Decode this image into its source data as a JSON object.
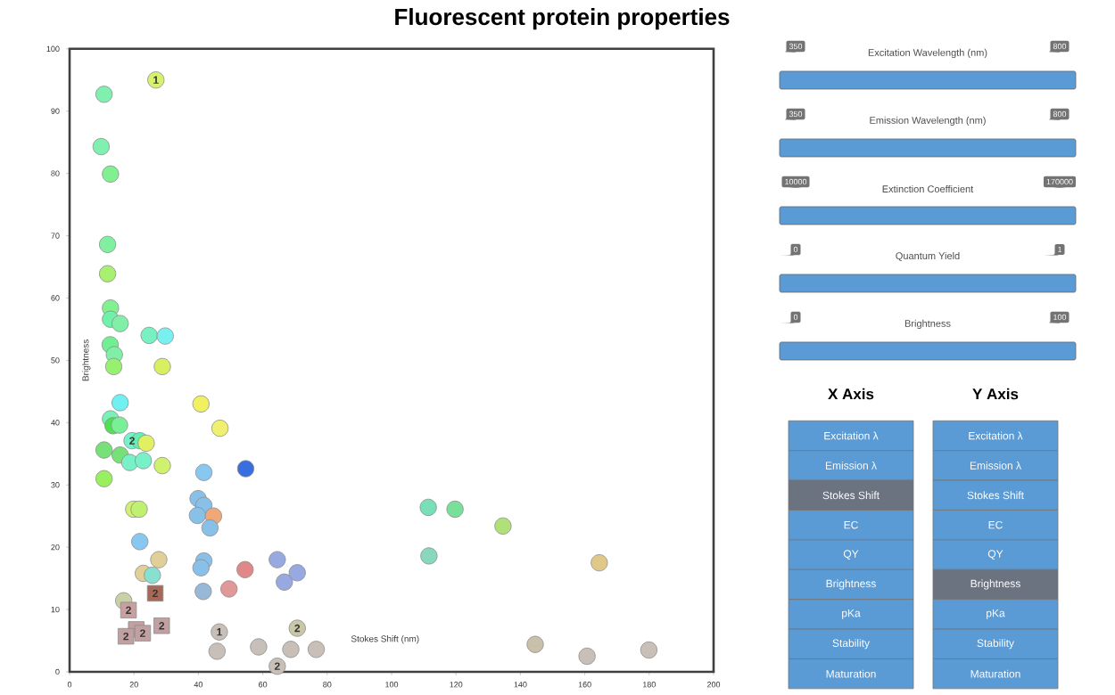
{
  "chart_data": [
    {
      "type": "scatter",
      "title": "Fluorescent protein properties",
      "xlabel": "Stokes Shift (nm)",
      "ylabel": "Brightness",
      "xlim": [
        0,
        200
      ],
      "ylim": [
        0,
        100
      ],
      "xticks": [
        0,
        20,
        40,
        60,
        80,
        100,
        120,
        140,
        160,
        180,
        200
      ],
      "yticks": [
        0,
        10,
        20,
        30,
        40,
        50,
        60,
        70,
        80,
        90,
        100
      ],
      "series": [
        {
          "marker": "circle",
          "x": [
            26.8,
            10.7,
            9.8,
            12.7,
            11.8,
            11.8,
            12.7,
            12.7,
            15.7,
            24.7,
            29.7,
            12.6,
            13.9,
            13.7,
            28.8,
            15.7,
            40.8,
            46.7,
            12.7,
            13.5,
            15.5,
            19.4,
            21.8,
            23.8,
            10.7,
            15.7,
            18.7,
            22.9,
            28.8,
            10.7,
            41.7,
            54.7,
            39.9,
            41.7,
            39.7,
            44.7,
            43.6,
            19.9,
            21.6,
            21.8,
            27.7,
            41.7,
            40.8,
            22.9,
            25.7,
            41.5,
            49.5,
            54.5,
            64.5,
            66.7,
            70.7,
            111.4,
            119.7,
            134.6,
            111.6,
            164.5,
            16.8,
            46.5,
            45.8,
            58.7,
            68.7,
            76.6,
            70.7,
            64.5,
            144.6,
            160.7,
            179.9
          ],
          "values": [
            95.0,
            92.7,
            84.3,
            79.9,
            68.6,
            63.9,
            58.4,
            56.6,
            55.9,
            54.0,
            53.9,
            52.5,
            50.9,
            49.0,
            49.0,
            43.2,
            43.0,
            39.1,
            40.6,
            39.5,
            39.6,
            37.1,
            37.1,
            36.7,
            35.6,
            34.8,
            33.6,
            33.9,
            33.1,
            31.0,
            32.0,
            32.6,
            27.8,
            26.7,
            25.1,
            25.0,
            23.1,
            26.1,
            26.1,
            20.9,
            18.0,
            17.8,
            16.7,
            15.8,
            15.5,
            12.9,
            13.3,
            16.4,
            18.0,
            14.4,
            15.9,
            26.4,
            26.1,
            23.4,
            18.6,
            17.5,
            11.4,
            6.4,
            3.3,
            4.0,
            3.6,
            3.6,
            7.0,
            0.9,
            4.4,
            2.5,
            3.5
          ],
          "colors": [
            "#d8f070",
            "#80f0b0",
            "#80f0b0",
            "#80f090",
            "#80f0a0",
            "#a8f070",
            "#80f090",
            "#70f0a8",
            "#80f0a8",
            "#78f0c0",
            "#78f0f0",
            "#70f090",
            "#80f0a8",
            "#98f070",
            "#d8f060",
            "#70f0f0",
            "#f0f060",
            "#f0f070",
            "#78f0b8",
            "#50e050",
            "#78f098",
            "#78f0c8",
            "#60f0b0",
            "#e0f060",
            "#78e078",
            "#78e078",
            "#78f0c8",
            "#78f0c8",
            "#d0f070",
            "#98f060",
            "#88c8f0",
            "#3a6ee0",
            "#88c0e8",
            "#88c0e8",
            "#88c0e8",
            "#f0a878",
            "#88c0e8",
            "#d0f070",
            "#c0f070",
            "#88c8f0",
            "#e0d098",
            "#88c0e8",
            "#88c0e8",
            "#e0d098",
            "#88e0d0",
            "#98b8d8",
            "#e09898",
            "#e08888",
            "#98a8e0",
            "#98a8e0",
            "#98a8e0",
            "#78e0b8",
            "#78e098",
            "#b0e078",
            "#88d8c0",
            "#e0c888",
            "#c8d0a8",
            "#c8c0b8",
            "#c8c0b8",
            "#c8c0b8",
            "#c8c0b8",
            "#c8c0b8",
            "#c8c8a8",
            "#c8c0b8",
            "#c8c0a8",
            "#c8c0b8",
            "#c8c0b8"
          ]
        },
        {
          "marker": "square",
          "x": [
            26.6,
            18.3,
            20.7,
            22.7,
            17.5,
            28.6
          ],
          "values": [
            12.6,
            9.9,
            6.8,
            6.2,
            5.7,
            7.4
          ],
          "colors": [
            "#a86858",
            "#c8a0a0",
            "#c0a0a0",
            "#c0a0a0",
            "#c0a0a0",
            "#c0a0a0"
          ]
        }
      ],
      "annotations": [
        {
          "text": "1",
          "x": 26.8,
          "y": 95.0
        },
        {
          "text": "2",
          "x": 19.4,
          "y": 37.1
        },
        {
          "text": "2",
          "x": 26.6,
          "y": 12.6
        },
        {
          "text": "2",
          "x": 18.3,
          "y": 9.9
        },
        {
          "text": "2",
          "x": 22.7,
          "y": 6.2
        },
        {
          "text": "2",
          "x": 17.5,
          "y": 5.7
        },
        {
          "text": "2",
          "x": 28.6,
          "y": 7.4
        },
        {
          "text": "1",
          "x": 46.5,
          "y": 6.4
        },
        {
          "text": "2",
          "x": 70.7,
          "y": 7.0
        },
        {
          "text": "2",
          "x": 64.5,
          "y": 0.9
        }
      ]
    },
    {
      "type": "other",
      "annotations": [
        "Excitation Wavelength (nm)",
        "350",
        "800",
        "Emission Wavelength (nm)",
        "350",
        "800",
        "Extinction Coefficient",
        "10000",
        "170000",
        "Quantum Yield",
        "0",
        "1",
        "Brightness",
        "0",
        "100",
        "X Axis",
        "Y Axis",
        "Excitation λ",
        "Emission λ",
        "Stokes Shift",
        "EC",
        "QY",
        "Brightness",
        "pKa",
        "Stability",
        "Maturation",
        "Excitation λ",
        "Emission λ",
        "Stokes Shift",
        "EC",
        "QY",
        "Brightness",
        "pKa",
        "Stability",
        "Maturation"
      ],
      "colors": [
        "#5b9bd5",
        "#5b9bd5",
        "#6b7280",
        "#5b9bd5",
        "#5b9bd5",
        "#5b9bd5",
        "#5b9bd5",
        "#5b9bd5",
        "#5b9bd5",
        "#5b9bd5",
        "#5b9bd5",
        "#5b9bd5",
        "#5b9bd5",
        "#5b9bd5",
        "#6b7280",
        "#5b9bd5",
        "#5b9bd5",
        "#5b9bd5"
      ]
    }
  ]
}
